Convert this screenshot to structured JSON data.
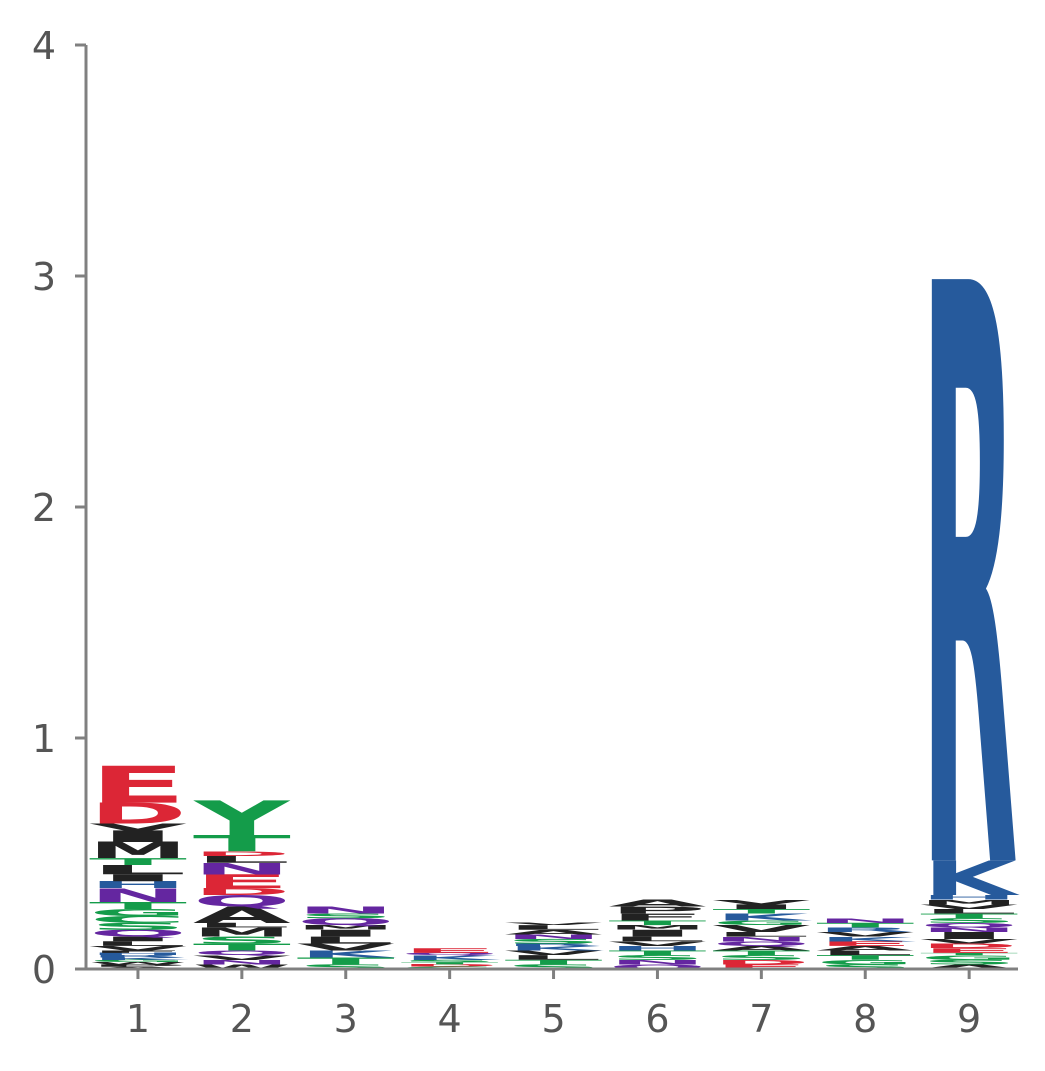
{
  "chart_data": {
    "type": "sequence_logo",
    "title": "",
    "xlabel": "",
    "ylabel": "",
    "ylim": [
      0,
      4
    ],
    "yticks": [
      "0",
      "1",
      "2",
      "3",
      "4"
    ],
    "positions": [
      "1",
      "2",
      "3",
      "4",
      "5",
      "6",
      "7",
      "8",
      "9"
    ],
    "colors": {
      "E": "#dc2636",
      "D": "#dc2636",
      "R": "#265a9c",
      "K": "#265a9c",
      "H": "#265a9c",
      "N": "#6426a0",
      "Q": "#6426a0",
      "S": "#149c4a",
      "T": "#149c4a",
      "Y": "#149c4a",
      "C": "#149c4a",
      "G": "#149c4a",
      "A": "#222222",
      "V": "#222222",
      "L": "#222222",
      "I": "#222222",
      "P": "#222222",
      "W": "#222222",
      "F": "#222222",
      "M": "#222222"
    },
    "stacks": [
      [
        [
          "A",
          0.01
        ],
        [
          "P",
          0.01
        ],
        [
          "W",
          0.01
        ],
        [
          "G",
          0.01
        ],
        [
          "K",
          0.01
        ],
        [
          "R",
          0.01
        ],
        [
          "H",
          0.01
        ],
        [
          "F",
          0.01
        ],
        [
          "V",
          0.02
        ],
        [
          "L",
          0.02
        ],
        [
          "I",
          0.02
        ],
        [
          "Q",
          0.03
        ],
        [
          "S",
          0.03
        ],
        [
          "C",
          0.03
        ],
        [
          "G",
          0.03
        ],
        [
          "T",
          0.03
        ],
        [
          "N",
          0.06
        ],
        [
          "H",
          0.03
        ],
        [
          "I",
          0.03
        ],
        [
          "L",
          0.04
        ],
        [
          "T",
          0.03
        ],
        [
          "M",
          0.07
        ],
        [
          "I",
          0.05
        ],
        [
          "V",
          0.03
        ],
        [
          "D",
          0.09
        ],
        [
          "E",
          0.16
        ]
      ],
      [
        [
          "W",
          0.02
        ],
        [
          "N",
          0.02
        ],
        [
          "V",
          0.02
        ],
        [
          "Q",
          0.02
        ],
        [
          "T",
          0.03
        ],
        [
          "S",
          0.03
        ],
        [
          "M",
          0.04
        ],
        [
          "L",
          0.02
        ],
        [
          "A",
          0.07
        ],
        [
          "Q",
          0.05
        ],
        [
          "D",
          0.03
        ],
        [
          "E",
          0.06
        ],
        [
          "N",
          0.05
        ],
        [
          "L",
          0.03
        ],
        [
          "D",
          0.02
        ],
        [
          "T",
          0.07
        ],
        [
          "Y",
          0.15
        ]
      ],
      [
        [
          "S",
          0.02
        ],
        [
          "T",
          0.03
        ],
        [
          "K",
          0.03
        ],
        [
          "V",
          0.03
        ],
        [
          "L",
          0.03
        ],
        [
          "I",
          0.03
        ],
        [
          "M",
          0.02
        ],
        [
          "Q",
          0.03
        ],
        [
          "S",
          0.02
        ],
        [
          "N",
          0.03
        ]
      ],
      [
        [
          "G",
          0.01
        ],
        [
          "D",
          0.01
        ],
        [
          "T",
          0.01
        ],
        [
          "S",
          0.01
        ],
        [
          "K",
          0.02
        ],
        [
          "Q",
          0.01
        ],
        [
          "E",
          0.02
        ]
      ],
      [
        [
          "S",
          0.02
        ],
        [
          "T",
          0.02
        ],
        [
          "L",
          0.02
        ],
        [
          "V",
          0.02
        ],
        [
          "K",
          0.02
        ],
        [
          "R",
          0.01
        ],
        [
          "S",
          0.02
        ],
        [
          "N",
          0.02
        ],
        [
          "A",
          0.02
        ],
        [
          "L",
          0.02
        ],
        [
          "V",
          0.01
        ]
      ],
      [
        [
          "Q",
          0.02
        ],
        [
          "N",
          0.02
        ],
        [
          "S",
          0.02
        ],
        [
          "T",
          0.02
        ],
        [
          "H",
          0.02
        ],
        [
          "V",
          0.02
        ],
        [
          "L",
          0.02
        ],
        [
          "I",
          0.03
        ],
        [
          "M",
          0.02
        ],
        [
          "T",
          0.02
        ],
        [
          "F",
          0.03
        ],
        [
          "P",
          0.03
        ],
        [
          "A",
          0.03
        ]
      ],
      [
        [
          "E",
          0.02
        ],
        [
          "D",
          0.02
        ],
        [
          "S",
          0.02
        ],
        [
          "T",
          0.02
        ],
        [
          "A",
          0.02
        ],
        [
          "Q",
          0.02
        ],
        [
          "N",
          0.02
        ],
        [
          "L",
          0.02
        ],
        [
          "V",
          0.03
        ],
        [
          "G",
          0.02
        ],
        [
          "K",
          0.03
        ],
        [
          "T",
          0.02
        ],
        [
          "I",
          0.02
        ],
        [
          "V",
          0.02
        ]
      ],
      [
        [
          "S",
          0.02
        ],
        [
          "G",
          0.02
        ],
        [
          "T",
          0.02
        ],
        [
          "L",
          0.02
        ],
        [
          "A",
          0.02
        ],
        [
          "E",
          0.02
        ],
        [
          "K",
          0.02
        ],
        [
          "V",
          0.02
        ],
        [
          "R",
          0.02
        ],
        [
          "T",
          0.02
        ],
        [
          "N",
          0.02
        ]
      ],
      [
        [
          "A",
          0.02
        ],
        [
          "S",
          0.02
        ],
        [
          "G",
          0.02
        ],
        [
          "T",
          0.01
        ],
        [
          "E",
          0.02
        ],
        [
          "D",
          0.02
        ],
        [
          "V",
          0.02
        ],
        [
          "I",
          0.03
        ],
        [
          "N",
          0.02
        ],
        [
          "Q",
          0.02
        ],
        [
          "S",
          0.02
        ],
        [
          "T",
          0.02
        ],
        [
          "L",
          0.02
        ],
        [
          "V",
          0.02
        ],
        [
          "M",
          0.02
        ],
        [
          "H",
          0.02
        ],
        [
          "K",
          0.15
        ],
        [
          "R",
          2.52
        ]
      ]
    ]
  }
}
